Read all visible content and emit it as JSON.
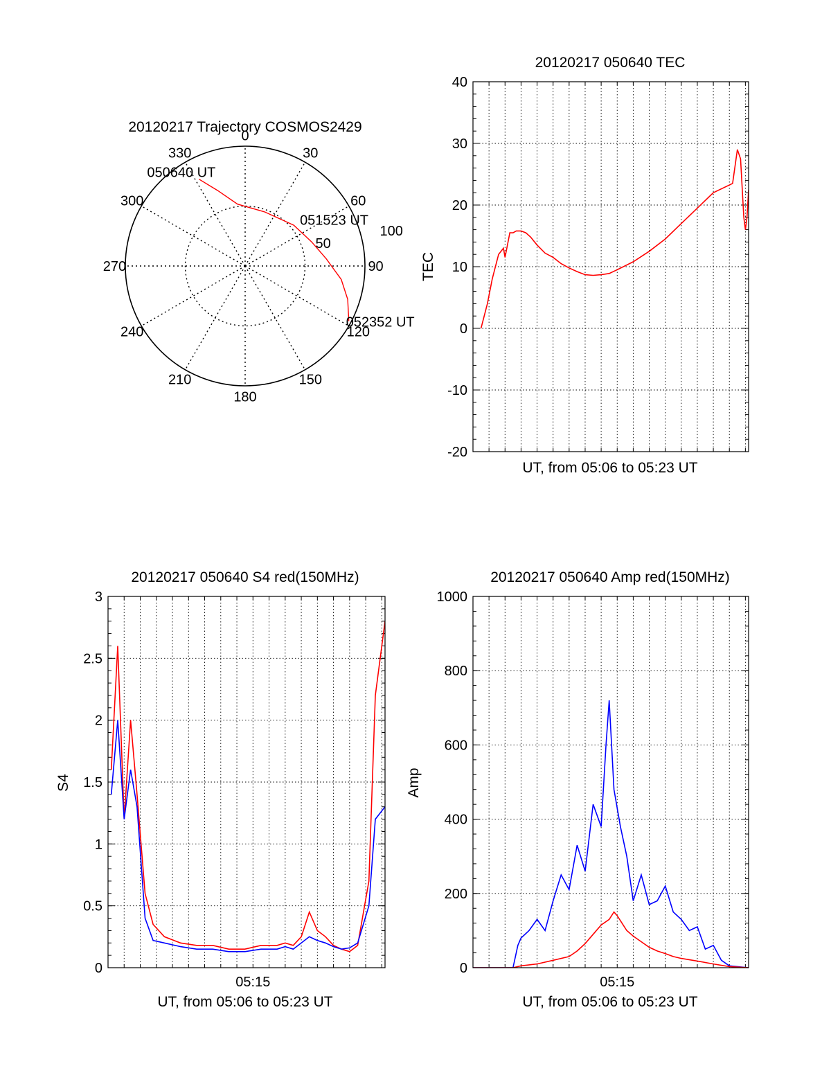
{
  "chart_data": [
    {
      "type": "polar",
      "title": "20120217 Trajectory COSMOS2429",
      "azimuth_labels": [
        "0",
        "30",
        "60",
        "90",
        "120",
        "150",
        "180",
        "210",
        "240",
        "270",
        "300",
        "330"
      ],
      "azimuth_values": [
        0,
        30,
        60,
        90,
        120,
        150,
        180,
        210,
        240,
        270,
        300,
        330
      ],
      "radial_labels": [
        "50",
        "100"
      ],
      "radial_values": [
        50,
        100
      ],
      "zenith_range": [
        0,
        100
      ],
      "grid": true,
      "trajectory": {
        "color": "#ff0000",
        "points": [
          {
            "az": 332,
            "zen": 82
          },
          {
            "az": 340,
            "zen": 67
          },
          {
            "az": 353,
            "zen": 52
          },
          {
            "az": 20,
            "zen": 48
          },
          {
            "az": 50,
            "zen": 53
          },
          {
            "az": 70,
            "zen": 59
          },
          {
            "az": 85,
            "zen": 68
          },
          {
            "az": 98,
            "zen": 81
          },
          {
            "az": 108,
            "zen": 90
          },
          {
            "az": 118,
            "zen": 98
          }
        ]
      },
      "annotations": [
        {
          "text": "050640 UT",
          "az": 332,
          "zen": 82
        },
        {
          "text": "051523 UT",
          "az": 72,
          "zen": 59
        },
        {
          "text": "052352 UT",
          "az": 118,
          "zen": 98
        }
      ]
    },
    {
      "type": "line",
      "title": "20120217 050640 TEC",
      "xlabel": "UT, from 05:06 to 05:23 UT",
      "ylabel": "TEC",
      "xlim": [
        0,
        17.2
      ],
      "ylim": [
        -20,
        40
      ],
      "yticks": [
        -20,
        -10,
        0,
        10,
        20,
        30,
        40
      ],
      "xticks": [],
      "grid": true,
      "series": [
        {
          "color": "#ff0000",
          "x": [
            0.5,
            0.9,
            1.2,
            1.6,
            1.9,
            2.0,
            2.3,
            2.5,
            2.7,
            2.8,
            3.0,
            3.3,
            3.6,
            4.0,
            4.5,
            5.0,
            5.5,
            6.0,
            6.5,
            7.0,
            7.5,
            8.0,
            8.5,
            9.0,
            10.0,
            11.0,
            12.0,
            13.0,
            14.0,
            15.0,
            16.2,
            16.5,
            16.7,
            16.9,
            17.0,
            17.1,
            17.2
          ],
          "y": [
            0,
            4,
            8,
            12,
            13,
            11.5,
            15.5,
            15.5,
            15.8,
            15.8,
            15.8,
            15.5,
            14.8,
            13.5,
            12.2,
            11.5,
            10.5,
            9.8,
            9.2,
            8.7,
            8.6,
            8.7,
            8.9,
            9.5,
            10.8,
            12.5,
            14.5,
            17,
            19.5,
            22,
            23.5,
            29,
            27.5,
            18,
            16,
            18,
            22.5
          ]
        }
      ]
    },
    {
      "type": "line",
      "title": "20120217 050640 S4 red(150MHz)",
      "xlabel": "UT, from 05:06 to 05:23 UT",
      "ylabel": "S4",
      "xlim": [
        0,
        17.2
      ],
      "ylim": [
        0,
        3
      ],
      "yticks": [
        0,
        0.5,
        1,
        1.5,
        2,
        2.5,
        3
      ],
      "yticklabels": [
        "0",
        "0.5",
        "1",
        "1.5",
        "2",
        "2.5",
        "3"
      ],
      "xticks": [
        9
      ],
      "xticklabels": [
        "05:15"
      ],
      "grid": true,
      "series": [
        {
          "color": "#ff0000",
          "x": [
            0.2,
            0.6,
            1.0,
            1.4,
            1.8,
            2.3,
            2.8,
            3.5,
            4.5,
            5.5,
            6.5,
            7.5,
            8.5,
            9.5,
            10.5,
            11.0,
            11.5,
            12.0,
            12.5,
            13.0,
            13.5,
            14.0,
            14.5,
            15.0,
            15.5,
            16.2,
            16.6,
            17.2
          ],
          "y": [
            1.6,
            2.6,
            1.2,
            2.0,
            1.4,
            0.6,
            0.35,
            0.25,
            0.2,
            0.18,
            0.18,
            0.15,
            0.15,
            0.18,
            0.18,
            0.2,
            0.18,
            0.25,
            0.45,
            0.3,
            0.25,
            0.18,
            0.15,
            0.13,
            0.18,
            0.7,
            2.2,
            2.8
          ]
        },
        {
          "color": "#0000ff",
          "x": [
            0.2,
            0.6,
            1.0,
            1.4,
            1.8,
            2.3,
            2.8,
            3.5,
            4.5,
            5.5,
            6.5,
            7.5,
            8.5,
            9.5,
            10.5,
            11.0,
            11.5,
            12.0,
            12.5,
            13.0,
            13.5,
            14.0,
            14.5,
            15.0,
            15.5,
            16.2,
            16.6,
            17.2
          ],
          "y": [
            1.4,
            2.0,
            1.2,
            1.6,
            1.3,
            0.4,
            0.22,
            0.2,
            0.17,
            0.15,
            0.15,
            0.13,
            0.13,
            0.15,
            0.15,
            0.17,
            0.15,
            0.2,
            0.25,
            0.22,
            0.2,
            0.17,
            0.15,
            0.16,
            0.2,
            0.5,
            1.2,
            1.3
          ]
        }
      ]
    },
    {
      "type": "line",
      "title": "20120217 050640 Amp red(150MHz)",
      "xlabel": "UT, from 05:06 to 05:23 UT",
      "ylabel": "Amp",
      "xlim": [
        0,
        17.2
      ],
      "ylim": [
        0,
        1000
      ],
      "yticks": [
        0,
        200,
        400,
        600,
        800,
        1000
      ],
      "xticks": [
        9
      ],
      "xticklabels": [
        "05:15"
      ],
      "grid": true,
      "series": [
        {
          "color": "#0000ff",
          "x": [
            0,
            1.5,
            2.5,
            2.8,
            3.0,
            3.5,
            4.0,
            4.5,
            5.0,
            5.5,
            6.0,
            6.5,
            7.0,
            7.5,
            8.0,
            8.3,
            8.5,
            8.8,
            9.2,
            9.6,
            10.0,
            10.5,
            11.0,
            11.5,
            12.0,
            12.5,
            13.0,
            13.5,
            14.0,
            14.5,
            15.0,
            15.5,
            16.0,
            17.2
          ],
          "y": [
            0,
            0,
            0,
            60,
            80,
            100,
            130,
            100,
            180,
            250,
            210,
            330,
            260,
            440,
            380,
            600,
            720,
            480,
            380,
            300,
            180,
            250,
            170,
            180,
            220,
            150,
            130,
            100,
            110,
            50,
            60,
            20,
            5,
            0
          ]
        },
        {
          "color": "#ff0000",
          "x": [
            0,
            2.5,
            3.0,
            4.0,
            5.0,
            6.0,
            6.5,
            7.0,
            7.5,
            8.0,
            8.5,
            8.8,
            9.0,
            9.3,
            9.6,
            10.0,
            10.5,
            11.0,
            11.5,
            12.0,
            12.5,
            13.0,
            14.0,
            15.0,
            16.0,
            17.2
          ],
          "y": [
            0,
            0,
            5,
            10,
            20,
            30,
            45,
            65,
            90,
            115,
            130,
            150,
            140,
            120,
            100,
            85,
            70,
            55,
            45,
            38,
            30,
            25,
            18,
            10,
            3,
            0
          ]
        }
      ]
    }
  ]
}
